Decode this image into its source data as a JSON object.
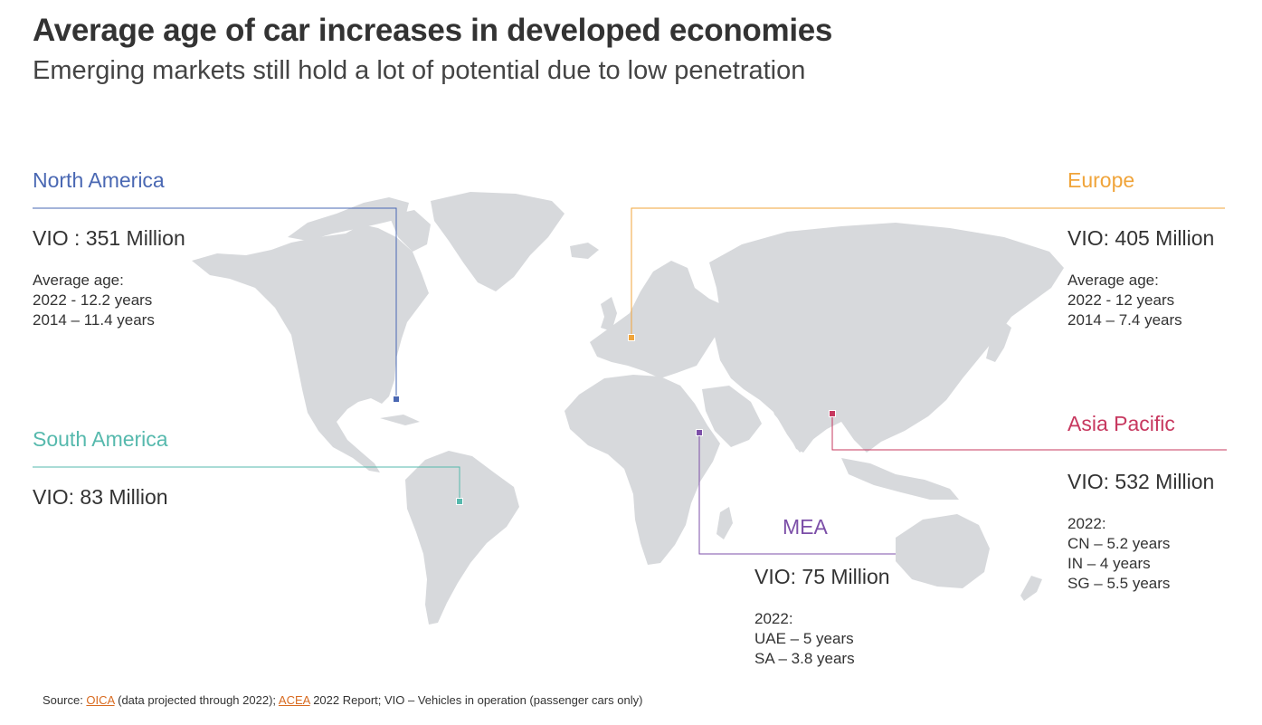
{
  "title": "Average age of car increases in developed economies",
  "subtitle": "Emerging markets still hold a lot of potential due to low penetration",
  "colors": {
    "land": "#d7d9dc",
    "north_america": "#4a68b3",
    "europe": "#f0a43a",
    "south_america": "#56b9ad",
    "asia_pacific": "#c7385f",
    "mea": "#7c4fa8",
    "link": "#d86a1f"
  },
  "regions": {
    "north_america": {
      "name": "North America",
      "vio": "VIO : 351 Million",
      "details": [
        "Average age:",
        "2022 - 12.2 years",
        "2014 – 11.4 years"
      ]
    },
    "europe": {
      "name": "Europe",
      "vio": "VIO: 405 Million",
      "details": [
        "Average age:",
        "2022 - 12 years",
        "2014 – 7.4 years"
      ]
    },
    "south_america": {
      "name": "South America",
      "vio": "VIO: 83 Million"
    },
    "asia_pacific": {
      "name": "Asia Pacific",
      "vio": "VIO: 532 Million",
      "details": [
        "2022:",
        "CN – 5.2 years",
        "IN – 4 years",
        "SG – 5.5 years"
      ]
    },
    "mea": {
      "name": "MEA",
      "vio": "VIO: 75 Million",
      "details": [
        "2022:",
        "UAE – 5 years",
        "SA – 3.8 years"
      ]
    }
  },
  "source": {
    "prefix": "Source: ",
    "link1": "OICA",
    "text1": " (data projected through 2022); ",
    "link2": "ACEA",
    "text2": " 2022 Report; VIO – Vehicles in operation (passenger cars only)"
  }
}
